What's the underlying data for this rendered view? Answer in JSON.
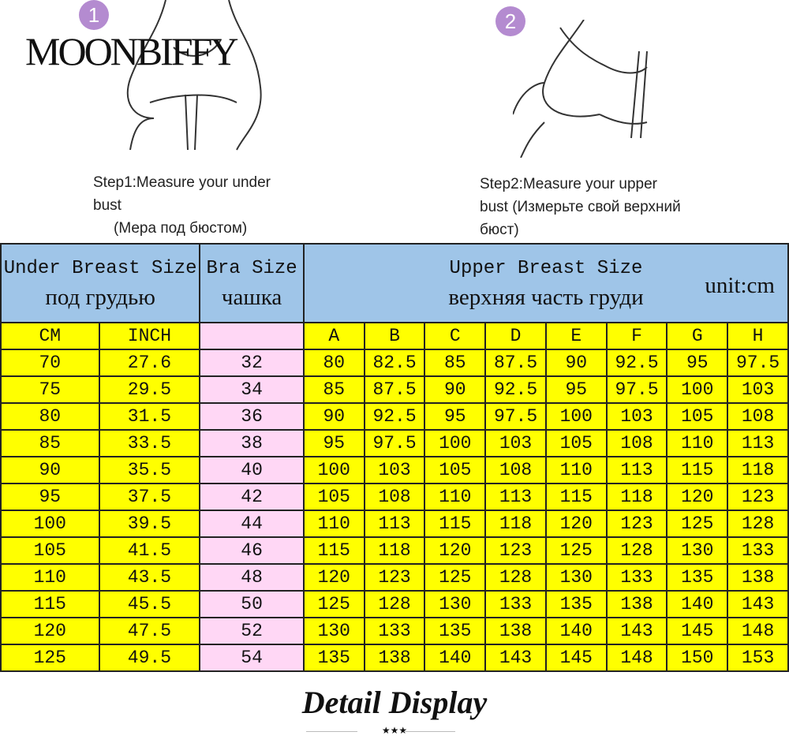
{
  "brand": "MOONBIFFY",
  "steps": [
    {
      "number": "1",
      "line1": "Step1:Measure your under",
      "line2": "bust",
      "line3": "(Мера под бюстом)"
    },
    {
      "number": "2",
      "line1": "Step2:Measure your upper",
      "line2": "bust (Измерьте свой верхний",
      "line3": "бюст)"
    }
  ],
  "table": {
    "under_title": "Under Breast Size",
    "under_ru": "под грудью",
    "bra_title": "Bra Size",
    "bra_ru": "чашка",
    "upper_title": "Upper Breast Size",
    "upper_ru": "верхняя часть груди",
    "unit": "unit:cm",
    "subheaders": [
      "CM",
      "INCH",
      "",
      "A",
      "B",
      "C",
      "D",
      "E",
      "F",
      "G",
      "H"
    ],
    "rows": [
      [
        "70",
        "27.6",
        "32",
        "80",
        "82.5",
        "85",
        "87.5",
        "90",
        "92.5",
        "95",
        "97.5"
      ],
      [
        "75",
        "29.5",
        "34",
        "85",
        "87.5",
        "90",
        "92.5",
        "95",
        "97.5",
        "100",
        "103"
      ],
      [
        "80",
        "31.5",
        "36",
        "90",
        "92.5",
        "95",
        "97.5",
        "100",
        "103",
        "105",
        "108"
      ],
      [
        "85",
        "33.5",
        "38",
        "95",
        "97.5",
        "100",
        "103",
        "105",
        "108",
        "110",
        "113"
      ],
      [
        "90",
        "35.5",
        "40",
        "100",
        "103",
        "105",
        "108",
        "110",
        "113",
        "115",
        "118"
      ],
      [
        "95",
        "37.5",
        "42",
        "105",
        "108",
        "110",
        "113",
        "115",
        "118",
        "120",
        "123"
      ],
      [
        "100",
        "39.5",
        "44",
        "110",
        "113",
        "115",
        "118",
        "120",
        "123",
        "125",
        "128"
      ],
      [
        "105",
        "41.5",
        "46",
        "115",
        "118",
        "120",
        "123",
        "125",
        "128",
        "130",
        "133"
      ],
      [
        "110",
        "43.5",
        "48",
        "120",
        "123",
        "125",
        "128",
        "130",
        "133",
        "135",
        "138"
      ],
      [
        "115",
        "45.5",
        "50",
        "125",
        "128",
        "130",
        "133",
        "135",
        "138",
        "140",
        "143"
      ],
      [
        "120",
        "47.5",
        "52",
        "130",
        "133",
        "135",
        "138",
        "140",
        "143",
        "145",
        "148"
      ],
      [
        "125",
        "49.5",
        "54",
        "135",
        "138",
        "140",
        "143",
        "145",
        "148",
        "150",
        "153"
      ]
    ]
  },
  "footer": {
    "title": "Detail Display",
    "stars": "★★★"
  },
  "colors": {
    "header": "#9fc5e8",
    "cells": "#ffff00",
    "bra_column": "#ffd7f5",
    "step_badge": "#b48bd0"
  }
}
